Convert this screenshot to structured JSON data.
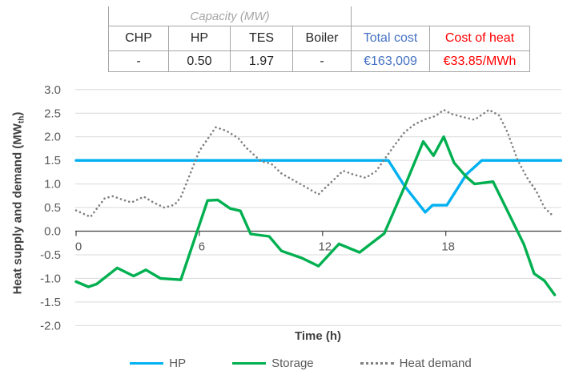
{
  "table": {
    "capacity_header": "Capacity (MW)",
    "columns": [
      "CHP",
      "HP",
      "TES",
      "Boiler",
      "Total cost",
      "Cost of heat"
    ],
    "values": [
      "-",
      "0.50",
      "1.97",
      "-",
      "€163,009",
      "€33.85/MWh"
    ],
    "total_cost_color": "#4472C4",
    "cost_of_heat_color": "#FF0000",
    "border_color": "#A6A6A6"
  },
  "chart_data": {
    "type": "line",
    "title": "",
    "xlabel": "Time (h)",
    "ylabel": "Heat supply and demand (MWth)",
    "ylabel_parts": {
      "main": "Heat supply and demand (MW",
      "sub": "th",
      "close": ")"
    },
    "xlim": [
      0,
      23.6
    ],
    "ylim": [
      -2.0,
      3.0
    ],
    "xticks": [
      "0",
      "6",
      "12",
      "18"
    ],
    "ytick_labels": [
      "3.0",
      "2.5",
      "2.0",
      "1.5",
      "1.0",
      "0.5",
      "0.0",
      "-0.5",
      "-1.0",
      "-1.5",
      "-2.0"
    ],
    "grid": true,
    "legend_position": "bottom",
    "axis_color": "#404040",
    "grid_color": "#D9D9D9",
    "tick_label_color": "#595959",
    "series": [
      {
        "name": "HP",
        "color": "#00B0F0",
        "style": "solid",
        "width": 3.4,
        "points": [
          [
            0,
            1.5
          ],
          [
            15.2,
            1.5
          ],
          [
            16,
            0.95
          ],
          [
            17,
            0.4
          ],
          [
            17.35,
            0.55
          ],
          [
            18.05,
            0.55
          ],
          [
            19,
            1.2
          ],
          [
            19.75,
            1.5
          ],
          [
            23.6,
            1.5
          ]
        ]
      },
      {
        "name": "Storage",
        "color": "#00B050",
        "style": "solid",
        "width": 3.4,
        "points": [
          [
            0,
            -1.07
          ],
          [
            0.6,
            -1.18
          ],
          [
            1,
            -1.12
          ],
          [
            2,
            -0.78
          ],
          [
            2.8,
            -0.95
          ],
          [
            3.4,
            -0.82
          ],
          [
            4.1,
            -1.0
          ],
          [
            5.1,
            -1.03
          ],
          [
            6.4,
            0.65
          ],
          [
            6.9,
            0.66
          ],
          [
            7.5,
            0.48
          ],
          [
            8,
            0.43
          ],
          [
            8.5,
            -0.06
          ],
          [
            9.4,
            -0.11
          ],
          [
            10,
            -0.42
          ],
          [
            11,
            -0.57
          ],
          [
            11.8,
            -0.74
          ],
          [
            12.8,
            -0.27
          ],
          [
            13.8,
            -0.45
          ],
          [
            15,
            -0.05
          ],
          [
            16,
            0.95
          ],
          [
            16.9,
            1.9
          ],
          [
            17.4,
            1.6
          ],
          [
            17.9,
            2.0
          ],
          [
            18.4,
            1.45
          ],
          [
            19,
            1.15
          ],
          [
            19.4,
            1.0
          ],
          [
            20.3,
            1.05
          ],
          [
            21.8,
            -0.28
          ],
          [
            22.3,
            -0.9
          ],
          [
            22.8,
            -1.05
          ],
          [
            23.3,
            -1.35
          ]
        ]
      },
      {
        "name": "Heat demand",
        "color": "#7F7F7F",
        "style": "dotted",
        "width": 2.6,
        "points": [
          [
            0,
            0.44
          ],
          [
            0.7,
            0.3
          ],
          [
            1.4,
            0.7
          ],
          [
            1.8,
            0.74
          ],
          [
            2.3,
            0.66
          ],
          [
            2.7,
            0.61
          ],
          [
            3.3,
            0.73
          ],
          [
            3.8,
            0.6
          ],
          [
            4.3,
            0.5
          ],
          [
            4.8,
            0.56
          ],
          [
            5.1,
            0.72
          ],
          [
            6,
            1.7
          ],
          [
            6.8,
            2.2
          ],
          [
            7.3,
            2.13
          ],
          [
            7.9,
            1.97
          ],
          [
            8.3,
            1.76
          ],
          [
            9,
            1.48
          ],
          [
            9.5,
            1.43
          ],
          [
            10,
            1.22
          ],
          [
            11,
            0.98
          ],
          [
            11.8,
            0.78
          ],
          [
            13,
            1.28
          ],
          [
            13.5,
            1.2
          ],
          [
            14.1,
            1.13
          ],
          [
            14.6,
            1.27
          ],
          [
            15.5,
            1.82
          ],
          [
            16,
            2.1
          ],
          [
            16.5,
            2.27
          ],
          [
            17,
            2.37
          ],
          [
            17.5,
            2.44
          ],
          [
            17.9,
            2.57
          ],
          [
            18.3,
            2.48
          ],
          [
            19,
            2.4
          ],
          [
            19.4,
            2.36
          ],
          [
            20.1,
            2.57
          ],
          [
            20.6,
            2.45
          ],
          [
            21,
            2.1
          ],
          [
            21.5,
            1.5
          ],
          [
            22,
            1.1
          ],
          [
            22.4,
            0.85
          ],
          [
            22.8,
            0.5
          ],
          [
            23.2,
            0.33
          ]
        ]
      }
    ]
  },
  "legend": {
    "items": [
      "HP",
      "Storage",
      "Heat demand"
    ]
  }
}
